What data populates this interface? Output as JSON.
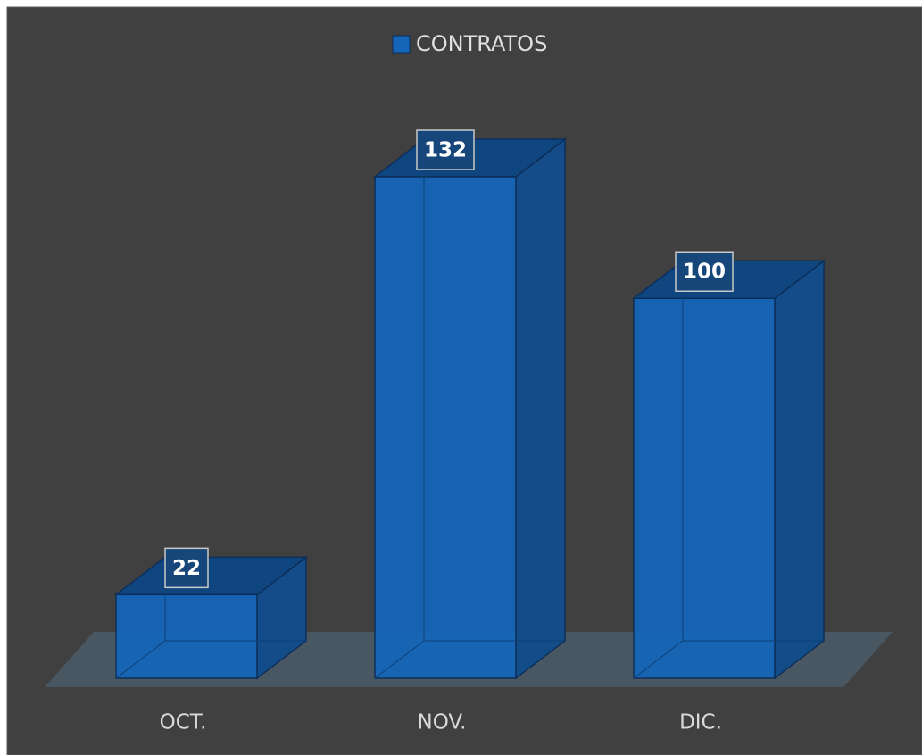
{
  "chart_data": {
    "type": "bar3d",
    "categories": [
      "OCT.",
      "NOV.",
      "DIC."
    ],
    "series": [
      {
        "name": "CONTRATOS",
        "color": "#1565b8",
        "values": [
          22,
          132,
          100
        ]
      }
    ],
    "legend": "top"
  }
}
